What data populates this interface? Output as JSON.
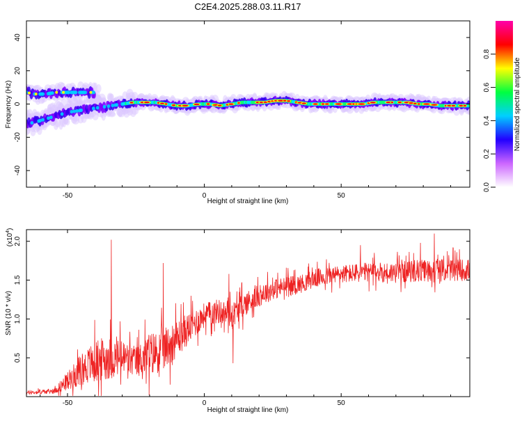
{
  "title": "C2E4.2025.288.03.11.R17",
  "chart_data": [
    {
      "type": "heatmap",
      "xlabel": "Height of straight line (km)",
      "ylabel": "Frequency (Hz)",
      "xlim": [
        -65,
        97
      ],
      "ylim": [
        -50,
        50
      ],
      "xticks": [
        -50,
        0,
        50
      ],
      "yticks": [
        -40,
        -20,
        0,
        20,
        40
      ],
      "colorbar": {
        "label": "Normalized spectral amplitude",
        "ticks": [
          "0.0",
          "0.2",
          "0.4",
          "0.6",
          "0.8"
        ],
        "range": [
          0,
          1
        ],
        "colormap": [
          "#ffffff",
          "#cc66ff",
          "#2200ff",
          "#00d0ff",
          "#00ff40",
          "#ffff00",
          "#ff0000",
          "#ff00aa"
        ]
      },
      "tracks": [
        {
          "x": [
            -65,
            -62,
            -58,
            -54,
            -50,
            -46,
            -42
          ],
          "y": [
            7,
            6,
            6,
            7,
            7,
            7,
            7
          ]
        },
        {
          "x": [
            -65,
            -62,
            -58,
            -54,
            -50,
            -46,
            -42,
            -38,
            -34,
            -30,
            -26,
            -22,
            -18,
            -14,
            -10,
            -6,
            -2,
            2,
            6,
            10,
            14,
            18,
            22,
            26,
            30,
            34,
            38,
            42,
            46,
            50,
            54,
            58,
            62,
            66,
            70,
            74,
            78,
            82,
            86,
            90,
            94,
            97
          ],
          "y": [
            -12,
            -11,
            -9,
            -7,
            -5,
            -4,
            -3,
            -2,
            -1,
            0,
            1,
            1,
            1,
            0,
            -1,
            -1,
            0,
            0,
            -1,
            0,
            1,
            1,
            1,
            2,
            2,
            1,
            0,
            0,
            0,
            0,
            0,
            0,
            1,
            1,
            1,
            1,
            0,
            0,
            -1,
            -1,
            -1,
            -1
          ]
        }
      ]
    },
    {
      "type": "line",
      "xlabel": "Height of straight line (km)",
      "ylabel": "SNR (10 * v/v)",
      "yscale_label": "(x10",
      "yscale_exp": "4",
      "yscale_close": ")",
      "xlim": [
        -65,
        97
      ],
      "ylim": [
        0,
        2.15
      ],
      "xticks": [
        -50,
        0,
        50
      ],
      "yticks": [
        "0.5",
        "1.0",
        "1.5",
        "2.0"
      ],
      "series": [
        {
          "color": "#ee2222",
          "envelope": {
            "x": [
              -65,
              -55,
              -50,
              -45,
              -40,
              -35,
              -30,
              -25,
              -20,
              -15,
              -10,
              -5,
              0,
              5,
              10,
              15,
              20,
              25,
              30,
              35,
              40,
              50,
              60,
              70,
              80,
              90,
              97
            ],
            "mean": [
              0.05,
              0.07,
              0.2,
              0.35,
              0.45,
              0.5,
              0.5,
              0.45,
              0.55,
              0.6,
              0.75,
              0.9,
              1.05,
              1.1,
              1.05,
              1.2,
              1.3,
              1.38,
              1.42,
              1.45,
              1.52,
              1.58,
              1.6,
              1.6,
              1.62,
              1.63,
              1.63
            ],
            "noise": [
              0.03,
              0.04,
              0.15,
              0.25,
              0.35,
              0.35,
              0.3,
              0.25,
              0.35,
              0.35,
              0.3,
              0.25,
              0.2,
              0.2,
              0.2,
              0.2,
              0.18,
              0.17,
              0.16,
              0.15,
              0.15,
              0.15,
              0.16,
              0.17,
              0.18,
              0.18,
              0.18
            ]
          },
          "peaks": [
            {
              "x": -34,
              "y": 2.02
            },
            {
              "x": -15,
              "y": 1.72
            },
            {
              "x": 9,
              "y": 1.58
            },
            {
              "x": 10.5,
              "y": 0.43
            },
            {
              "x": 84,
              "y": 2.1
            },
            {
              "x": 79,
              "y": 1.98
            },
            {
              "x": 57,
              "y": 1.95
            }
          ]
        }
      ]
    }
  ]
}
